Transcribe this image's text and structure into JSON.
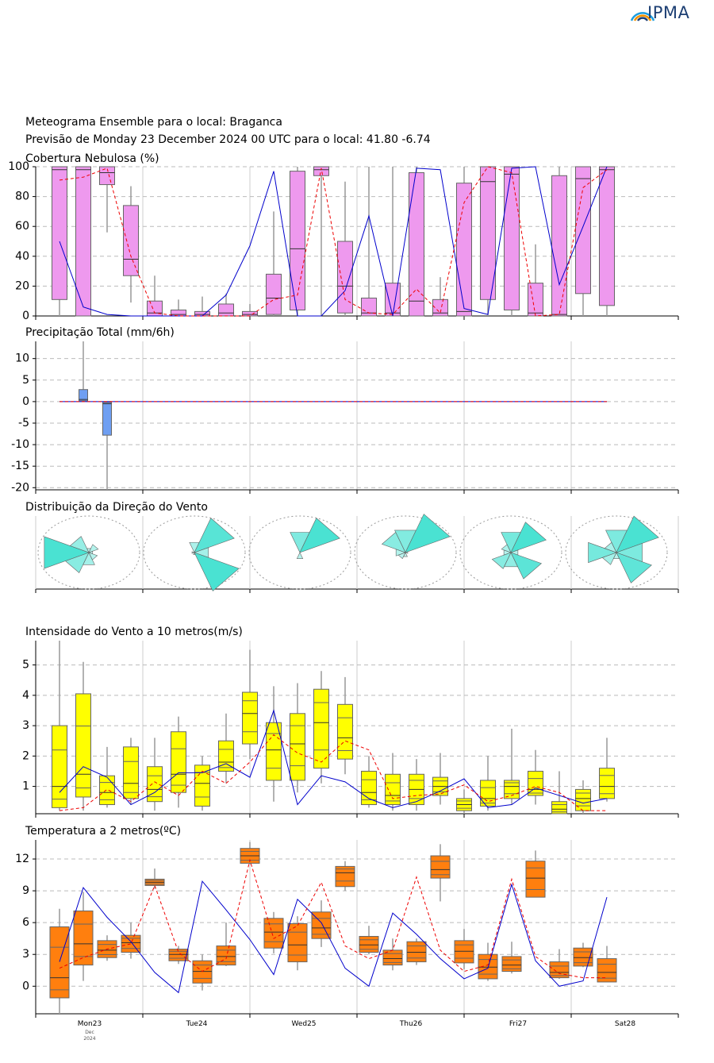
{
  "header": {
    "logo_text": "IPMA",
    "title_line1": "Meteograma Ensemble para o local: Braganca",
    "title_line2": "Previsão de Monday 23 December 2024 00 UTC para o local: 41.80 -6.74"
  },
  "colors": {
    "cloud_box": "#ee99ee",
    "precip_box": "#6f9ff2",
    "wind_box": "#ffff00",
    "temp_box": "#ff7f0e",
    "rose": "#40e0d0",
    "mean_line": "#0000cc",
    "control_line": "#ee0000"
  },
  "chart_data": [
    {
      "type": "box",
      "title": "Cobertura Nebulosa (%)",
      "ylim": [
        0,
        100
      ],
      "yticks": [
        0,
        20,
        40,
        60,
        80,
        100
      ],
      "grid": true,
      "boxes": [
        {
          "x": 1,
          "lo": 0,
          "q1": 11,
          "med": 98,
          "q3": 100,
          "hi": 100
        },
        {
          "x": 2,
          "lo": 0,
          "q1": 0,
          "med": 98,
          "q3": 100,
          "hi": 100
        },
        {
          "x": 3,
          "lo": 56,
          "q1": 88,
          "med": 96,
          "q3": 100,
          "hi": 100
        },
        {
          "x": 4,
          "lo": 9,
          "q1": 27,
          "med": 38,
          "q3": 74,
          "hi": 87
        },
        {
          "x": 5,
          "lo": 0,
          "q1": 0,
          "med": 2,
          "q3": 10,
          "hi": 27
        },
        {
          "x": 6,
          "lo": 0,
          "q1": 0,
          "med": 1,
          "q3": 4,
          "hi": 11
        },
        {
          "x": 7,
          "lo": 0,
          "q1": 0,
          "med": 1,
          "q3": 3,
          "hi": 13
        },
        {
          "x": 8,
          "lo": 0,
          "q1": 0,
          "med": 2,
          "q3": 8,
          "hi": 15
        },
        {
          "x": 9,
          "lo": 0,
          "q1": 0,
          "med": 1,
          "q3": 3,
          "hi": 8
        },
        {
          "x": 10,
          "lo": 0,
          "q1": 1,
          "med": 12,
          "q3": 28,
          "hi": 70
        },
        {
          "x": 11,
          "lo": 0,
          "q1": 4,
          "med": 45,
          "q3": 97,
          "hi": 100
        },
        {
          "x": 12,
          "lo": 0,
          "q1": 94,
          "med": 98,
          "q3": 100,
          "hi": 100
        },
        {
          "x": 13,
          "lo": 0,
          "q1": 2,
          "med": 20,
          "q3": 50,
          "hi": 90
        },
        {
          "x": 14,
          "lo": 0,
          "q1": 0,
          "med": 2,
          "q3": 12,
          "hi": 100
        },
        {
          "x": 15,
          "lo": 0,
          "q1": 0,
          "med": 2,
          "q3": 22,
          "hi": 100
        },
        {
          "x": 16,
          "lo": 0,
          "q1": 0,
          "med": 10,
          "q3": 96,
          "hi": 100
        },
        {
          "x": 17,
          "lo": 0,
          "q1": 0,
          "med": 2,
          "q3": 11,
          "hi": 26
        },
        {
          "x": 18,
          "lo": 0,
          "q1": 0,
          "med": 3,
          "q3": 89,
          "hi": 100
        },
        {
          "x": 19,
          "lo": 0,
          "q1": 11,
          "med": 90,
          "q3": 100,
          "hi": 100
        },
        {
          "x": 20,
          "lo": 0,
          "q1": 4,
          "med": 95,
          "q3": 100,
          "hi": 100
        },
        {
          "x": 21,
          "lo": 0,
          "q1": 0,
          "med": 2,
          "q3": 22,
          "hi": 48
        },
        {
          "x": 22,
          "lo": 0,
          "q1": 0,
          "med": 1,
          "q3": 94,
          "hi": 100
        },
        {
          "x": 23,
          "lo": 0,
          "q1": 15,
          "med": 92,
          "q3": 100,
          "hi": 100
        },
        {
          "x": 24,
          "lo": 0,
          "q1": 7,
          "med": 98,
          "q3": 100,
          "hi": 100
        }
      ],
      "mean": [
        50,
        6,
        1,
        0,
        0,
        0,
        0,
        14,
        47,
        97,
        0,
        0,
        17,
        67,
        0,
        99,
        98,
        5,
        1,
        99,
        100,
        21,
        60,
        100
      ],
      "control": [
        91,
        93,
        99,
        40,
        2,
        0,
        0,
        0,
        0,
        11,
        14,
        99,
        11,
        2,
        1,
        18,
        2,
        76,
        100,
        96,
        0,
        1,
        86,
        98
      ]
    },
    {
      "type": "box",
      "title": "Precipitação Total (mm/6h)",
      "ylim": [
        -20.5,
        14
      ],
      "yticks": [
        -20,
        -15,
        -10,
        -5,
        0,
        5,
        10
      ],
      "grid": true,
      "boxes": [
        {
          "x": 2,
          "lo": 0,
          "q1": 0.2,
          "med": 0.5,
          "q3": 2.8,
          "hi": 14
        },
        {
          "x": 3,
          "lo": -20.5,
          "q1": -7.8,
          "med": -0.5,
          "q3": -0.2,
          "hi": 0
        }
      ],
      "mean": [
        0,
        0,
        0,
        0,
        0,
        0,
        0,
        0,
        0,
        0,
        0,
        0,
        0,
        0,
        0,
        0,
        0,
        0,
        0,
        0,
        0,
        0,
        0,
        0
      ],
      "control": [
        0,
        0,
        0,
        0,
        0,
        0,
        0,
        0,
        0,
        0,
        0,
        0,
        0,
        0,
        0,
        0,
        0,
        0,
        0,
        0,
        0,
        0,
        0,
        0
      ]
    },
    {
      "type": "wind-rose",
      "title": "Distribuição da Direção do Vento",
      "directions_deg": [
        0,
        45,
        90,
        135,
        180,
        225,
        270,
        315
      ],
      "days": [
        [
          0.1,
          0.2,
          0.08,
          0.18,
          0.3,
          0.5,
          0.95,
          0.4
        ],
        [
          0.25,
          0.85,
          0.3,
          0.95,
          0.05,
          0.0,
          0.05,
          0.0
        ],
        [
          0.5,
          0.85,
          0.0,
          0.0,
          0.15,
          0.0,
          0.0,
          0.0
        ],
        [
          0.55,
          0.95,
          0.05,
          0.0,
          0.1,
          0.15,
          0.2,
          0.5
        ],
        [
          0.5,
          0.75,
          0.15,
          0.65,
          0.35,
          0.4,
          0.15,
          0.2
        ],
        [
          0.55,
          0.9,
          0.55,
          0.75,
          0.15,
          0.3,
          0.6,
          0.25
        ]
      ]
    },
    {
      "type": "box",
      "title": "Intensidade do Vento a 10 metros(m/s)",
      "ylim": [
        0.1,
        5.8
      ],
      "yticks": [
        1,
        2,
        3,
        4,
        5
      ],
      "grid": true,
      "boxes": [
        {
          "x": 1,
          "lo": 0.2,
          "q1": 0.3,
          "med": 1.0,
          "q3": 3.0,
          "hi": 5.8
        },
        {
          "x": 2,
          "lo": 0.2,
          "q1": 0.65,
          "med": 1.4,
          "q3": 4.05,
          "hi": 5.1
        },
        {
          "x": 3,
          "lo": 0.3,
          "q1": 0.4,
          "med": 0.8,
          "q3": 1.35,
          "hi": 2.3
        },
        {
          "x": 4,
          "lo": 0.4,
          "q1": 0.6,
          "med": 1.1,
          "q3": 2.3,
          "hi": 2.6
        },
        {
          "x": 5,
          "lo": 0.2,
          "q1": 0.5,
          "med": 0.9,
          "q3": 1.65,
          "hi": 2.6
        },
        {
          "x": 6,
          "lo": 0.3,
          "q1": 0.8,
          "med": 1.4,
          "q3": 2.8,
          "hi": 3.3
        },
        {
          "x": 7,
          "lo": 0.2,
          "q1": 0.35,
          "med": 1.1,
          "q3": 1.7,
          "hi": 2.0
        },
        {
          "x": 8,
          "lo": 1.1,
          "q1": 1.5,
          "med": 1.8,
          "q3": 2.5,
          "hi": 3.4
        },
        {
          "x": 9,
          "lo": 1.9,
          "q1": 2.4,
          "med": 3.4,
          "q3": 4.1,
          "hi": 5.5
        },
        {
          "x": 10,
          "lo": 0.5,
          "q1": 1.2,
          "med": 2.2,
          "q3": 3.1,
          "hi": 4.3
        },
        {
          "x": 11,
          "lo": 0.8,
          "q1": 1.2,
          "med": 2.4,
          "q3": 3.4,
          "hi": 4.4
        },
        {
          "x": 12,
          "lo": 1.1,
          "q1": 1.6,
          "med": 3.1,
          "q3": 4.2,
          "hi": 4.8
        },
        {
          "x": 13,
          "lo": 1.4,
          "q1": 1.9,
          "med": 2.6,
          "q3": 3.7,
          "hi": 4.6
        },
        {
          "x": 14,
          "lo": 0.3,
          "q1": 0.4,
          "med": 0.8,
          "q3": 1.5,
          "hi": 2.0
        },
        {
          "x": 15,
          "lo": 0.2,
          "q1": 0.4,
          "med": 0.7,
          "q3": 1.4,
          "hi": 2.1
        },
        {
          "x": 16,
          "lo": 0.2,
          "q1": 0.4,
          "med": 0.9,
          "q3": 1.4,
          "hi": 1.9
        },
        {
          "x": 17,
          "lo": 0.4,
          "q1": 0.7,
          "med": 1.0,
          "q3": 1.3,
          "hi": 2.1
        },
        {
          "x": 18,
          "lo": 0.1,
          "q1": 0.2,
          "med": 0.4,
          "q3": 0.6,
          "hi": 0.9
        },
        {
          "x": 19,
          "lo": 0.2,
          "q1": 0.35,
          "med": 0.6,
          "q3": 1.2,
          "hi": 2.0
        },
        {
          "x": 20,
          "lo": 0.4,
          "q1": 0.6,
          "med": 1.0,
          "q3": 1.2,
          "hi": 2.9
        },
        {
          "x": 21,
          "lo": 0.4,
          "q1": 0.7,
          "med": 0.9,
          "q3": 1.5,
          "hi": 2.2
        },
        {
          "x": 22,
          "lo": 0.1,
          "q1": 0.1,
          "med": 0.25,
          "q3": 0.5,
          "hi": 1.5
        },
        {
          "x": 23,
          "lo": 0.1,
          "q1": 0.2,
          "med": 0.6,
          "q3": 0.9,
          "hi": 1.2
        },
        {
          "x": 24,
          "lo": 0.5,
          "q1": 0.6,
          "med": 1.0,
          "q3": 1.6,
          "hi": 2.6
        }
      ],
      "mean": [
        0.8,
        1.65,
        1.3,
        0.4,
        0.8,
        1.45,
        1.45,
        1.75,
        1.3,
        3.5,
        0.4,
        1.35,
        1.15,
        0.6,
        0.3,
        0.5,
        0.85,
        1.25,
        0.3,
        0.4,
        0.95,
        0.7,
        0.45,
        0.6
      ],
      "control": [
        0.2,
        0.3,
        0.9,
        0.5,
        1.15,
        0.7,
        1.5,
        1.1,
        1.8,
        2.7,
        2.1,
        1.8,
        2.5,
        2.2,
        0.6,
        0.7,
        0.75,
        1.05,
        0.5,
        0.7,
        1.0,
        0.8,
        0.2,
        0.2
      ]
    },
    {
      "type": "box",
      "title": "Temperatura a 2 metros(ºC)",
      "ylim": [
        -2.6,
        13.8
      ],
      "yticks": [
        0,
        3,
        6,
        9,
        12
      ],
      "grid": true,
      "boxes": [
        {
          "x": 1,
          "lo": -2.6,
          "q1": -1.1,
          "med": 0.8,
          "q3": 5.6,
          "hi": 7.3
        },
        {
          "x": 2,
          "lo": 0.5,
          "q1": 2.0,
          "med": 4.0,
          "q3": 7.1,
          "hi": 8.9
        },
        {
          "x": 3,
          "lo": 2.4,
          "q1": 2.7,
          "med": 3.4,
          "q3": 4.3,
          "hi": 4.8
        },
        {
          "x": 4,
          "lo": 2.6,
          "q1": 3.2,
          "med": 4.1,
          "q3": 4.8,
          "hi": 6.0
        },
        {
          "x": 5,
          "lo": 9.2,
          "q1": 9.5,
          "med": 9.8,
          "q3": 10.1,
          "hi": 11.1
        },
        {
          "x": 6,
          "lo": 2.1,
          "q1": 2.4,
          "med": 3.0,
          "q3": 3.5,
          "hi": 3.8
        },
        {
          "x": 7,
          "lo": -0.4,
          "q1": 0.3,
          "med": 1.4,
          "q3": 2.4,
          "hi": 3.0
        },
        {
          "x": 8,
          "lo": 1.9,
          "q1": 2.0,
          "med": 2.8,
          "q3": 3.8,
          "hi": 6.0
        },
        {
          "x": 9,
          "lo": 11.5,
          "q1": 11.6,
          "med": 12.3,
          "q3": 13.0,
          "hi": 13.6
        },
        {
          "x": 10,
          "lo": 3.1,
          "q1": 3.6,
          "med": 5.1,
          "q3": 6.4,
          "hi": 7.0
        },
        {
          "x": 11,
          "lo": 1.5,
          "q1": 2.3,
          "med": 3.9,
          "q3": 5.9,
          "hi": 6.6
        },
        {
          "x": 12,
          "lo": 3.7,
          "q1": 4.5,
          "med": 5.5,
          "q3": 7.0,
          "hi": 8.1
        },
        {
          "x": 13,
          "lo": 9.0,
          "q1": 9.4,
          "med": 10.7,
          "q3": 11.3,
          "hi": 11.8
        },
        {
          "x": 14,
          "lo": 3.0,
          "q1": 3.2,
          "med": 3.9,
          "q3": 4.7,
          "hi": 5.7
        },
        {
          "x": 15,
          "lo": 1.5,
          "q1": 2.0,
          "med": 2.6,
          "q3": 3.4,
          "hi": 4.5
        },
        {
          "x": 16,
          "lo": 2.0,
          "q1": 2.3,
          "med": 3.2,
          "q3": 4.2,
          "hi": 4.5
        },
        {
          "x": 17,
          "lo": 8.0,
          "q1": 10.2,
          "med": 11.0,
          "q3": 12.3,
          "hi": 13.4
        },
        {
          "x": 18,
          "lo": 1.6,
          "q1": 2.2,
          "med": 3.3,
          "q3": 4.3,
          "hi": 5.4
        },
        {
          "x": 19,
          "lo": 0.5,
          "q1": 0.7,
          "med": 1.8,
          "q3": 3.0,
          "hi": 4.1
        },
        {
          "x": 20,
          "lo": 1.2,
          "q1": 1.4,
          "med": 2.0,
          "q3": 2.8,
          "hi": 4.2
        },
        {
          "x": 21,
          "lo": 8.4,
          "q1": 8.4,
          "med": 10.2,
          "q3": 11.8,
          "hi": 12.8
        },
        {
          "x": 22,
          "lo": 0.7,
          "q1": 0.8,
          "med": 1.3,
          "q3": 2.3,
          "hi": 3.5
        },
        {
          "x": 23,
          "lo": 1.8,
          "q1": 1.9,
          "med": 2.7,
          "q3": 3.6,
          "hi": 4.1
        },
        {
          "x": 24,
          "lo": 0.4,
          "q1": 0.4,
          "med": 1.3,
          "q3": 2.6,
          "hi": 3.8
        }
      ],
      "mean": [
        2.3,
        9.3,
        6.5,
        4.2,
        1.3,
        -0.6,
        9.9,
        7.2,
        4.4,
        1.1,
        8.2,
        6.0,
        1.7,
        0.0,
        6.9,
        4.9,
        2.6,
        0.7,
        1.7,
        9.6,
        2.4,
        0.0,
        0.5,
        8.4
      ],
      "control": [
        1.7,
        2.7,
        3.5,
        4.0,
        9.5,
        3.2,
        1.4,
        2.6,
        11.9,
        4.5,
        5.7,
        9.8,
        3.8,
        2.6,
        3.4,
        10.3,
        3.4,
        1.4,
        2.0,
        10.1,
        2.8,
        1.2,
        0.8,
        0.8
      ]
    }
  ],
  "time_axis": {
    "day_labels": [
      "Mon23",
      "Tue24",
      "Wed25",
      "Thu26",
      "Fri27",
      "Sat28"
    ],
    "month_label": "Dec",
    "year_label": "2024"
  }
}
